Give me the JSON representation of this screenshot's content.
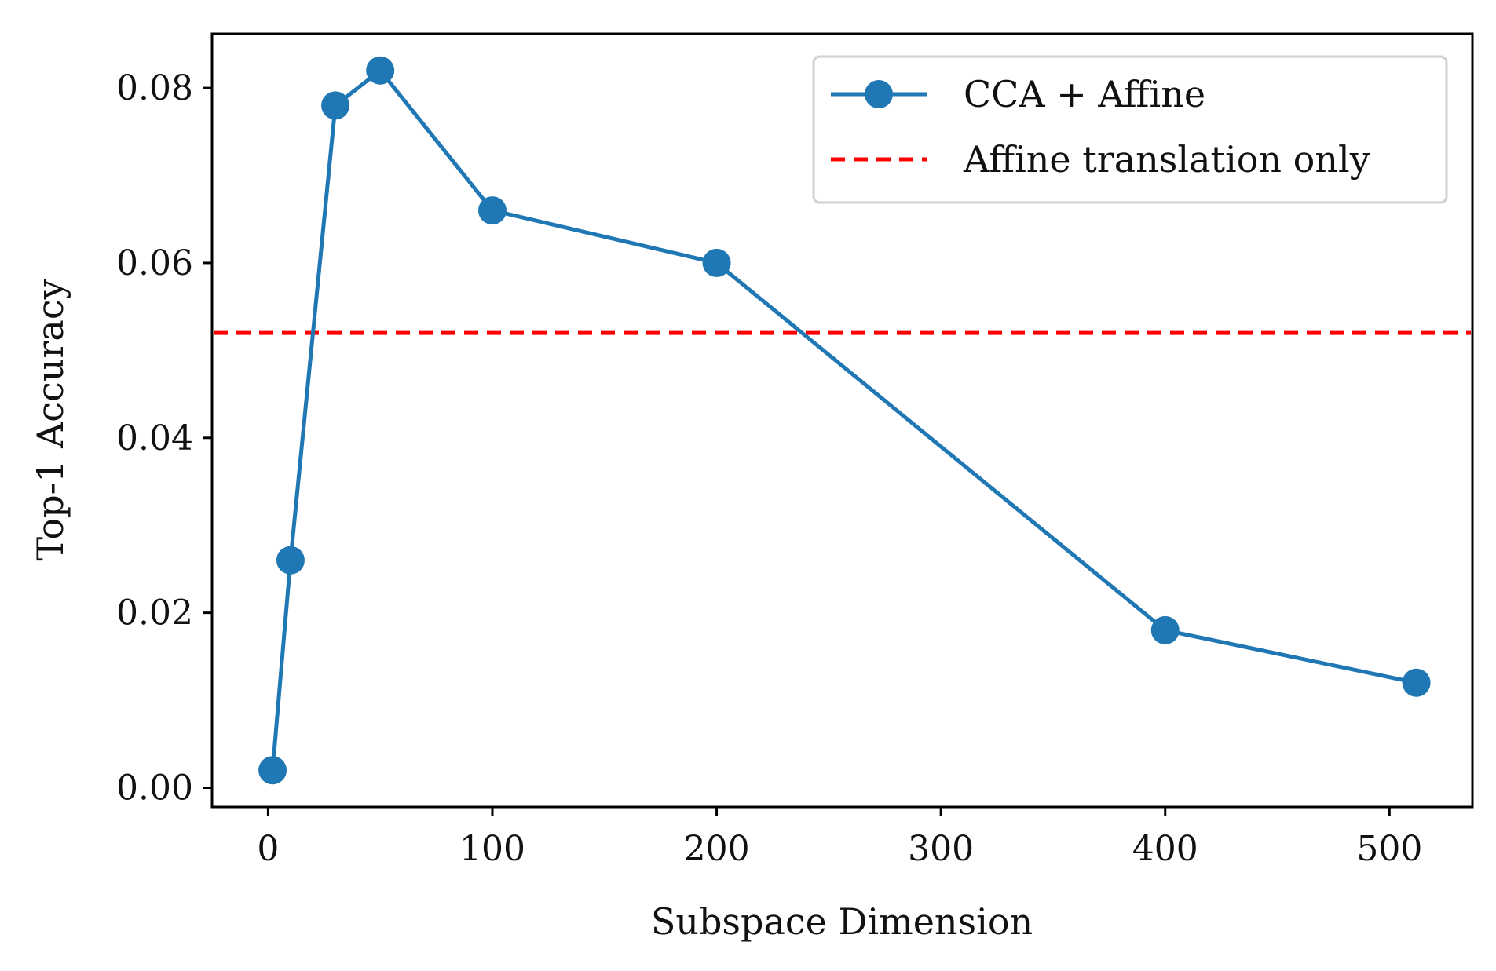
{
  "chart_data": {
    "type": "line",
    "title": "",
    "xlabel": "Subspace Dimension",
    "ylabel": "Top-1 Accuracy",
    "xlim": [
      -25,
      537
    ],
    "ylim": [
      -0.0022,
      0.0862
    ],
    "x_ticks": [
      0,
      100,
      200,
      300,
      400,
      500
    ],
    "x_tick_labels": [
      "0",
      "100",
      "200",
      "300",
      "400",
      "500"
    ],
    "y_ticks": [
      0.0,
      0.02,
      0.04,
      0.06,
      0.08
    ],
    "y_tick_labels": [
      "0.00",
      "0.02",
      "0.04",
      "0.06",
      "0.08"
    ],
    "grid": false,
    "legend_position": "top-right",
    "series": [
      {
        "name": "CCA + Affine",
        "style": "solid-with-markers",
        "color": "#1f77b4",
        "x": [
          2,
          10,
          30,
          50,
          100,
          200,
          400,
          512
        ],
        "y": [
          0.002,
          0.026,
          0.078,
          0.082,
          0.066,
          0.06,
          0.018,
          0.012
        ]
      }
    ],
    "reference_lines": [
      {
        "name": "Affine translation only",
        "orientation": "horizontal",
        "style": "dashed",
        "color": "#ff0000",
        "y": 0.052
      }
    ]
  }
}
